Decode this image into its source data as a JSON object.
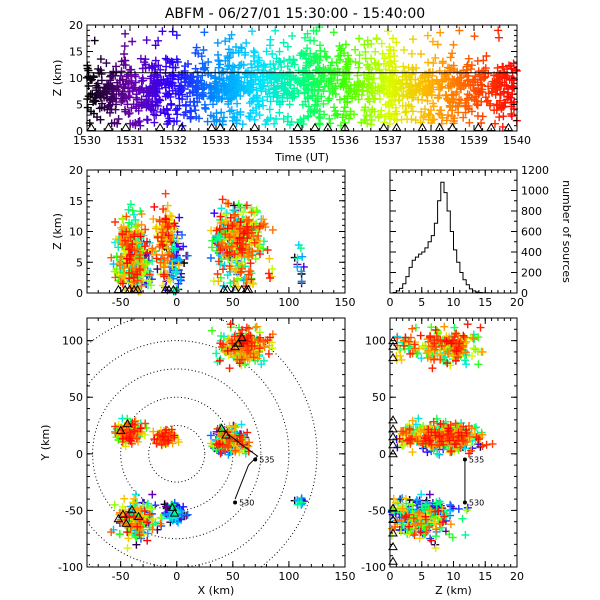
{
  "chart_data": {
    "title": "ABFM - 06/27/01 15:30:00 - 15:40:00",
    "panels": {
      "time_height": {
        "type": "scatter",
        "xlabel": "Time (UT)",
        "ylabel": "Z (km)",
        "xlim": [
          1530,
          1540
        ],
        "ylim": [
          0,
          20
        ],
        "xticks": [
          "1530",
          "1531",
          "1532",
          "1533",
          "1534",
          "1535",
          "1536",
          "1537",
          "1538",
          "1539",
          "1540"
        ],
        "yticks": [
          "0",
          "5",
          "10",
          "15",
          "20"
        ],
        "reference_line_z": 11,
        "color_by": "time",
        "cells": [
          {
            "t": [
              1530.0,
              1531.6
            ],
            "zc": 7.5,
            "spread": 2.5
          },
          {
            "t": [
              1531.5,
              1533.5
            ],
            "zc": 8.5,
            "spread": 2.5
          },
          {
            "t": [
              1533.0,
              1535.4
            ],
            "zc": 9.5,
            "spread": 3.0
          },
          {
            "t": [
              1535.0,
              1537.2
            ],
            "zc": 9.0,
            "spread": 3.0
          },
          {
            "t": [
              1537.0,
              1540.0
            ],
            "zc": 8.5,
            "spread": 2.5
          }
        ],
        "ground_markers_t": [
          1530.1,
          1530.5,
          1530.9,
          1531.7,
          1532.2,
          1532.9,
          1533.1,
          1533.4,
          1533.9,
          1534.9,
          1535.3,
          1535.6,
          1536.0,
          1536.9,
          1537.2,
          1537.8,
          1538.2,
          1538.5,
          1539.1,
          1539.4,
          1539.8
        ]
      },
      "x_height": {
        "type": "scatter",
        "xlim": [
          -80,
          150
        ],
        "ylim": [
          0,
          20
        ],
        "xticks": [
          "-50",
          "0",
          "50",
          "100",
          "150"
        ],
        "yticks": [
          "0",
          "5",
          "10",
          "15",
          "20"
        ],
        "ylabel": "Z (km)",
        "ground_markers_x": [
          -52,
          -46,
          -42,
          -38,
          -35,
          -10,
          -7,
          -3,
          42,
          45,
          52,
          58,
          62,
          64
        ]
      },
      "histogram": {
        "type": "bar",
        "ylabel": "number of sources",
        "xlim": [
          0,
          20
        ],
        "ylim": [
          0,
          1200
        ],
        "xticks": [
          "0",
          "5",
          "10",
          "15",
          "20"
        ],
        "yticks": [
          "0",
          "200",
          "400",
          "600",
          "800",
          "1000",
          "1200"
        ],
        "bin_width": 0.5,
        "bin_start": 0,
        "counts": [
          0,
          5,
          20,
          45,
          90,
          160,
          250,
          320,
          350,
          380,
          400,
          440,
          500,
          560,
          680,
          900,
          1080,
          980,
          800,
          600,
          420,
          300,
          200,
          130,
          80,
          40,
          20,
          10,
          5,
          3,
          2,
          1,
          0,
          0,
          0,
          0,
          0,
          0,
          0,
          0
        ]
      },
      "plan_view": {
        "type": "scatter",
        "xlabel": "X (km)",
        "ylabel": "Y (km)",
        "xlim": [
          -80,
          150
        ],
        "ylim": [
          -100,
          120
        ],
        "xticks": [
          "-50",
          "0",
          "50",
          "100",
          "150"
        ],
        "yticks": [
          "-100",
          "-50",
          "0",
          "50",
          "100"
        ],
        "range_rings_km": [
          25,
          50,
          75,
          100,
          125
        ],
        "station_labels": [
          {
            "text": "535",
            "x": 70,
            "y": -5
          },
          {
            "text": "530",
            "x": 52,
            "y": -43
          }
        ]
      },
      "z_y": {
        "type": "scatter",
        "xlabel": "Z (km)",
        "xlim": [
          0,
          20
        ],
        "ylim": [
          -100,
          120
        ],
        "xticks": [
          "0",
          "5",
          "10",
          "15",
          "20"
        ],
        "yticks": [
          "-100",
          "-50",
          "0",
          "50",
          "100"
        ],
        "station_labels": [
          {
            "text": "535",
            "z": 11.8,
            "y": -5
          },
          {
            "text": "530",
            "z": 11.8,
            "y": -43
          }
        ]
      }
    },
    "storm_cells": [
      {
        "cx": 60,
        "cy": 95,
        "rx": 14,
        "ry": 10,
        "zc": 9,
        "n": 230,
        "color_mix": "mid-late"
      },
      {
        "cx": -42,
        "cy": 20,
        "rx": 8,
        "ry": 7,
        "zc": 8,
        "n": 140,
        "color_mix": "mid-late"
      },
      {
        "cx": 48,
        "cy": 12,
        "rx": 10,
        "ry": 9,
        "zc": 8.5,
        "n": 160,
        "color_mix": "all"
      },
      {
        "cx": -10,
        "cy": 14,
        "rx": 6,
        "ry": 5,
        "zc": 9,
        "n": 90,
        "color_mix": "late"
      },
      {
        "cx": -35,
        "cy": -58,
        "rx": 12,
        "ry": 12,
        "zc": 5,
        "n": 190,
        "color_mix": "all"
      },
      {
        "cx": -2,
        "cy": -52,
        "rx": 6,
        "ry": 6,
        "zc": 5,
        "n": 80,
        "color_mix": "early"
      },
      {
        "cx": 110,
        "cy": -42,
        "rx": 3,
        "ry": 3,
        "zc": 5,
        "n": 12,
        "color_mix": "early"
      }
    ],
    "colors": {
      "time_scale": [
        "#000000",
        "#6a00a8",
        "#2b00ff",
        "#0090ff",
        "#00e0ff",
        "#00ff80",
        "#40ff00",
        "#d8ff00",
        "#ffb000",
        "#ff5000",
        "#ff0000"
      ],
      "hist_line": "#000000",
      "frame": "#000000"
    }
  }
}
